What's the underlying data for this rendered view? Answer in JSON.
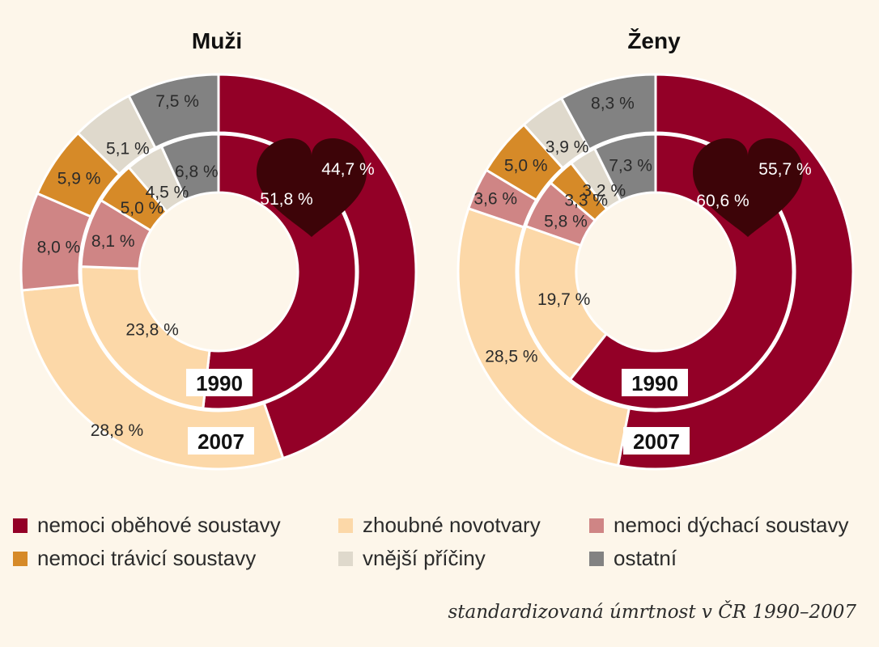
{
  "chart_data": [
    {
      "type": "pie",
      "title": "Muži",
      "rings": [
        {
          "name": "2007",
          "values": [
            44.7,
            28.8,
            8.0,
            5.9,
            5.1,
            7.5
          ],
          "labels": [
            "44,7 %",
            "28,8 %",
            "8,0 %",
            "5,9 %",
            "5,1 %",
            "7,5 %"
          ]
        },
        {
          "name": "1990",
          "values": [
            51.8,
            23.8,
            8.1,
            5.0,
            4.5,
            6.8
          ],
          "labels": [
            "51,8 %",
            "23,8 %",
            "8,1 %",
            "5,0 %",
            "4,5 %",
            "6,8 %"
          ]
        }
      ]
    },
    {
      "type": "pie",
      "title": "Ženy",
      "rings": [
        {
          "name": "2007",
          "values": [
            55.7,
            28.5,
            3.6,
            5.0,
            3.9,
            8.3
          ],
          "labels": [
            "55,7 %",
            "28,5 %",
            "3,6 %",
            "5,0 %",
            "3,9 %",
            "8,3 %"
          ]
        },
        {
          "name": "1990",
          "values": [
            60.6,
            19.7,
            5.8,
            3.3,
            3.2,
            7.3
          ],
          "labels": [
            "60,6 %",
            "19,7 %",
            "5,8 %",
            "3,3 %",
            "3,2 %",
            "7,3 %"
          ]
        }
      ]
    }
  ],
  "categories": [
    {
      "name": "nemoci oběhové soustavy",
      "color": "#930027"
    },
    {
      "name": "zhoubné novotvary",
      "color": "#fcd8a8"
    },
    {
      "name": "nemoci dýchací soustavy",
      "color": "#cf8585"
    },
    {
      "name": "nemoci trávicí soustavy",
      "color": "#d68a28"
    },
    {
      "name": "vnější příčiny",
      "color": "#dfd9cc"
    },
    {
      "name": "ostatní",
      "color": "#828282"
    }
  ],
  "heart_color": "#3d0408",
  "footnote": "standardizovaná úmrtnost v ČR 1990–2007"
}
